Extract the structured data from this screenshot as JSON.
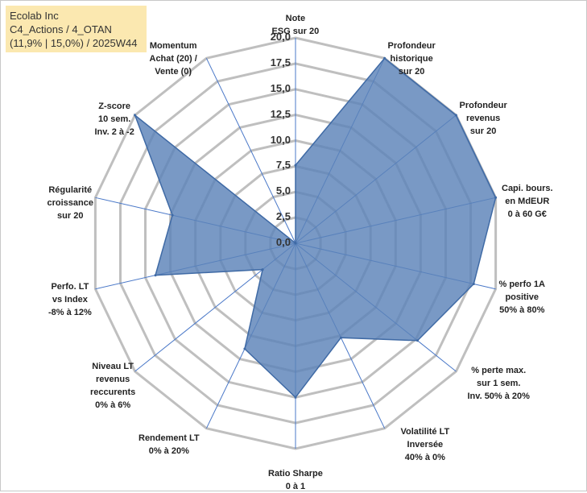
{
  "title": {
    "line1": "Ecolab Inc",
    "line2": "C4_Actions / 4_OTAN",
    "line3": "(11,9% | 15,0%) / 2025W44"
  },
  "chart_data": {
    "type": "radar",
    "rmin": 0,
    "rmax": 20,
    "ticks": [
      "0,0",
      "2,5",
      "5,0",
      "7,5",
      "10,0",
      "12,5",
      "15,0",
      "17,5",
      "20,0"
    ],
    "tick_values": [
      0,
      2.5,
      5,
      7.5,
      10,
      12.5,
      15,
      17.5,
      20
    ],
    "axes": [
      {
        "label": [
          "Note",
          "ESG sur 20"
        ],
        "value": 7.6
      },
      {
        "label": [
          "Profondeur",
          "historique",
          "sur 20"
        ],
        "value": 20
      },
      {
        "label": [
          "Profondeur",
          "revenus",
          "sur 20"
        ],
        "value": 20
      },
      {
        "label": [
          "Capi. bours.",
          "en MdEUR",
          "0 à 60 G€"
        ],
        "value": 20
      },
      {
        "label": [
          "% perfo 1A",
          "positive",
          "50% à 80%"
        ],
        "value": 17.8
      },
      {
        "label": [
          "% perte max.",
          "sur 1 sem.",
          "Inv. 50% à 20%"
        ],
        "value": 15.2
      },
      {
        "label": [
          "Volatilité LT",
          "Inversée",
          "40% à 0%"
        ],
        "value": 10.2
      },
      {
        "label": [
          "Ratio Sharpe",
          "0 à 1"
        ],
        "value": 15.0
      },
      {
        "label": [
          "Rendement LT",
          "0% à 20%"
        ],
        "value": 11.4
      },
      {
        "label": [
          "Niveau LT",
          "revenus",
          "reccurents",
          "0% à 6%"
        ],
        "value": 4.1
      },
      {
        "label": [
          "Perfo. LT",
          "vs Index",
          "-8% à 12%"
        ],
        "value": 14.0
      },
      {
        "label": [
          "Régularité",
          "croissance",
          "sur 20"
        ],
        "value": 12.3
      },
      {
        "label": [
          "Z-score",
          "10 sem.",
          "Inv. 2 à -2"
        ],
        "value": 20
      },
      {
        "label": [
          "Momentum",
          "Achat (20) /",
          "Vente (0)"
        ],
        "value": 0
      }
    ],
    "colors": {
      "fill": "#5b82b8",
      "stroke": "#3f6aa5",
      "grid": "#bfbfbf",
      "spoke": "#4a78c8"
    }
  }
}
